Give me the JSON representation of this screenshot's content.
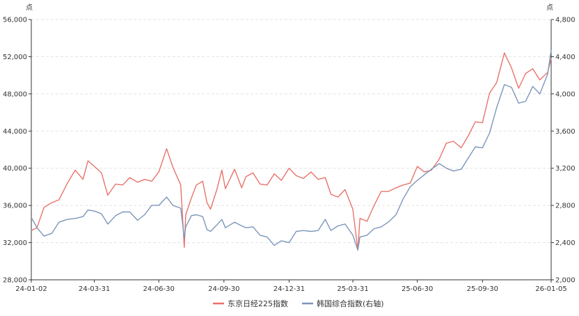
{
  "chart_data": {
    "type": "line",
    "left_axis": {
      "unit": "点",
      "ylim": [
        28000,
        56000
      ],
      "ticks": [
        28000,
        32000,
        36000,
        40000,
        44000,
        48000,
        52000,
        56000
      ],
      "tick_labels": [
        "28,000",
        "32,000",
        "36,000",
        "40,000",
        "44,000",
        "48,000",
        "52,000",
        "56,000"
      ]
    },
    "right_axis": {
      "unit": "点",
      "ylim": [
        2000,
        4800
      ],
      "ticks": [
        2000,
        2400,
        2800,
        3200,
        3600,
        4000,
        4400,
        4800
      ],
      "tick_labels": [
        "2,000",
        "2,400",
        "2,800",
        "3,200",
        "3,600",
        "4,000",
        "4,400",
        "4,800"
      ]
    },
    "x_axis": {
      "range": [
        "2024-01-02",
        "2026-01-05"
      ],
      "tick_dates": [
        "2024-01-02",
        "2024-03-31",
        "2024-06-30",
        "2024-09-30",
        "2024-12-31",
        "2025-03-31",
        "2025-06-30",
        "2025-09-30",
        "2026-01-05"
      ],
      "tick_labels": [
        "24-01-02",
        "24-03-31",
        "24-06-30",
        "24-09-30",
        "24-12-31",
        "25-03-31",
        "25-06-30",
        "25-09-30",
        "26-01-05"
      ]
    },
    "grid": "horizontal dashed",
    "legend_position": "bottom-center",
    "series": [
      {
        "name": "东京日经225指数",
        "axis": "left",
        "color": "#e8736c",
        "points": [
          [
            "2024-01-02",
            33300
          ],
          [
            "2024-01-10",
            33600
          ],
          [
            "2024-01-20",
            35800
          ],
          [
            "2024-01-31",
            36300
          ],
          [
            "2024-02-10",
            36600
          ],
          [
            "2024-02-22",
            38400
          ],
          [
            "2024-03-04",
            39800
          ],
          [
            "2024-03-15",
            38800
          ],
          [
            "2024-03-22",
            40800
          ],
          [
            "2024-03-31",
            40200
          ],
          [
            "2024-04-10",
            39500
          ],
          [
            "2024-04-19",
            37100
          ],
          [
            "2024-04-30",
            38300
          ],
          [
            "2024-05-10",
            38200
          ],
          [
            "2024-05-20",
            39000
          ],
          [
            "2024-05-31",
            38500
          ],
          [
            "2024-06-10",
            38800
          ],
          [
            "2024-06-20",
            38600
          ],
          [
            "2024-06-30",
            39600
          ],
          [
            "2024-07-11",
            42100
          ],
          [
            "2024-07-20",
            40100
          ],
          [
            "2024-07-31",
            38200
          ],
          [
            "2024-08-05",
            31500
          ],
          [
            "2024-08-07",
            35000
          ],
          [
            "2024-08-15",
            36800
          ],
          [
            "2024-08-22",
            38200
          ],
          [
            "2024-08-31",
            38600
          ],
          [
            "2024-09-06",
            36300
          ],
          [
            "2024-09-11",
            35600
          ],
          [
            "2024-09-20",
            37700
          ],
          [
            "2024-09-27",
            39800
          ],
          [
            "2024-10-02",
            37800
          ],
          [
            "2024-10-15",
            39900
          ],
          [
            "2024-10-25",
            37900
          ],
          [
            "2024-10-31",
            39100
          ],
          [
            "2024-11-10",
            39500
          ],
          [
            "2024-11-20",
            38300
          ],
          [
            "2024-11-30",
            38200
          ],
          [
            "2024-12-10",
            39400
          ],
          [
            "2024-12-20",
            38700
          ],
          [
            "2024-12-31",
            40000
          ],
          [
            "2025-01-10",
            39200
          ],
          [
            "2025-01-20",
            38900
          ],
          [
            "2025-01-31",
            39600
          ],
          [
            "2025-02-10",
            38800
          ],
          [
            "2025-02-20",
            39000
          ],
          [
            "2025-02-28",
            37200
          ],
          [
            "2025-03-10",
            36900
          ],
          [
            "2025-03-20",
            37700
          ],
          [
            "2025-03-31",
            35600
          ],
          [
            "2025-04-07",
            31200
          ],
          [
            "2025-04-10",
            34600
          ],
          [
            "2025-04-20",
            34300
          ],
          [
            "2025-04-30",
            36000
          ],
          [
            "2025-05-10",
            37500
          ],
          [
            "2025-05-20",
            37500
          ],
          [
            "2025-05-31",
            37900
          ],
          [
            "2025-06-10",
            38200
          ],
          [
            "2025-06-20",
            38400
          ],
          [
            "2025-06-30",
            40200
          ],
          [
            "2025-07-10",
            39600
          ],
          [
            "2025-07-20",
            39800
          ],
          [
            "2025-07-31",
            41000
          ],
          [
            "2025-08-10",
            42700
          ],
          [
            "2025-08-20",
            42900
          ],
          [
            "2025-08-31",
            42200
          ],
          [
            "2025-09-10",
            43500
          ],
          [
            "2025-09-20",
            45000
          ],
          [
            "2025-09-30",
            44900
          ],
          [
            "2025-10-10",
            48100
          ],
          [
            "2025-10-20",
            49200
          ],
          [
            "2025-10-31",
            52400
          ],
          [
            "2025-11-10",
            50800
          ],
          [
            "2025-11-20",
            48600
          ],
          [
            "2025-11-30",
            50200
          ],
          [
            "2025-12-10",
            50700
          ],
          [
            "2025-12-20",
            49500
          ],
          [
            "2025-12-31",
            50300
          ],
          [
            "2026-01-05",
            51800
          ]
        ]
      },
      {
        "name": "韩国综合指数(右轴)",
        "axis": "right",
        "color": "#7b96b9",
        "points": [
          [
            "2024-01-02",
            2670
          ],
          [
            "2024-01-10",
            2560
          ],
          [
            "2024-01-20",
            2470
          ],
          [
            "2024-01-31",
            2500
          ],
          [
            "2024-02-10",
            2620
          ],
          [
            "2024-02-22",
            2650
          ],
          [
            "2024-03-04",
            2660
          ],
          [
            "2024-03-15",
            2680
          ],
          [
            "2024-03-22",
            2750
          ],
          [
            "2024-03-31",
            2740
          ],
          [
            "2024-04-10",
            2710
          ],
          [
            "2024-04-19",
            2600
          ],
          [
            "2024-04-30",
            2690
          ],
          [
            "2024-05-10",
            2730
          ],
          [
            "2024-05-20",
            2730
          ],
          [
            "2024-05-31",
            2640
          ],
          [
            "2024-06-10",
            2700
          ],
          [
            "2024-06-20",
            2800
          ],
          [
            "2024-06-30",
            2800
          ],
          [
            "2024-07-11",
            2890
          ],
          [
            "2024-07-20",
            2800
          ],
          [
            "2024-07-31",
            2770
          ],
          [
            "2024-08-05",
            2450
          ],
          [
            "2024-08-07",
            2570
          ],
          [
            "2024-08-15",
            2690
          ],
          [
            "2024-08-22",
            2700
          ],
          [
            "2024-08-31",
            2680
          ],
          [
            "2024-09-06",
            2540
          ],
          [
            "2024-09-11",
            2520
          ],
          [
            "2024-09-20",
            2590
          ],
          [
            "2024-09-27",
            2650
          ],
          [
            "2024-10-02",
            2560
          ],
          [
            "2024-10-15",
            2620
          ],
          [
            "2024-10-25",
            2580
          ],
          [
            "2024-10-31",
            2560
          ],
          [
            "2024-11-10",
            2570
          ],
          [
            "2024-11-20",
            2480
          ],
          [
            "2024-11-30",
            2460
          ],
          [
            "2024-12-10",
            2370
          ],
          [
            "2024-12-20",
            2420
          ],
          [
            "2024-12-31",
            2400
          ],
          [
            "2025-01-10",
            2520
          ],
          [
            "2025-01-20",
            2530
          ],
          [
            "2025-01-31",
            2520
          ],
          [
            "2025-02-10",
            2530
          ],
          [
            "2025-02-20",
            2650
          ],
          [
            "2025-02-28",
            2530
          ],
          [
            "2025-03-10",
            2580
          ],
          [
            "2025-03-20",
            2600
          ],
          [
            "2025-03-31",
            2480
          ],
          [
            "2025-04-07",
            2320
          ],
          [
            "2025-04-10",
            2460
          ],
          [
            "2025-04-20",
            2480
          ],
          [
            "2025-04-30",
            2550
          ],
          [
            "2025-05-10",
            2570
          ],
          [
            "2025-05-20",
            2620
          ],
          [
            "2025-05-31",
            2700
          ],
          [
            "2025-06-10",
            2870
          ],
          [
            "2025-06-20",
            3000
          ],
          [
            "2025-06-30",
            3070
          ],
          [
            "2025-07-10",
            3130
          ],
          [
            "2025-07-20",
            3190
          ],
          [
            "2025-07-31",
            3250
          ],
          [
            "2025-08-10",
            3200
          ],
          [
            "2025-08-20",
            3170
          ],
          [
            "2025-08-31",
            3190
          ],
          [
            "2025-09-10",
            3310
          ],
          [
            "2025-09-20",
            3430
          ],
          [
            "2025-09-30",
            3420
          ],
          [
            "2025-10-10",
            3580
          ],
          [
            "2025-10-20",
            3850
          ],
          [
            "2025-10-31",
            4100
          ],
          [
            "2025-11-10",
            4070
          ],
          [
            "2025-11-20",
            3900
          ],
          [
            "2025-11-30",
            3920
          ],
          [
            "2025-12-10",
            4080
          ],
          [
            "2025-12-20",
            4000
          ],
          [
            "2025-12-31",
            4210
          ],
          [
            "2026-01-05",
            4470
          ]
        ]
      }
    ]
  }
}
